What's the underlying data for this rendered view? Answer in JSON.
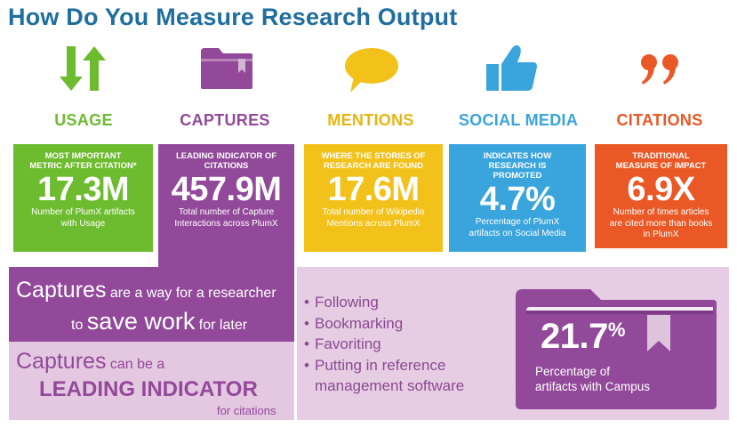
{
  "title": "How Do You Measure Research Output",
  "colors": {
    "usage": "#6dbb2f",
    "captures": "#92499a",
    "mentions": "#f2c11a",
    "social": "#3aa4dd",
    "citations": "#ea5825",
    "title": "#1f6e9f"
  },
  "categories": [
    {
      "key": "usage",
      "label": "USAGE",
      "icon": "up-down-arrows-icon",
      "subtitle": "MOST IMPORTANT METRIC AFTER CITATION*",
      "value": "17.3M",
      "description": "Number of PlumX artifacts with Usage"
    },
    {
      "key": "captures",
      "label": "CAPTURES",
      "icon": "folder-icon",
      "subtitle": "LEADING INDICATOR OF CITATIONS",
      "value": "457.9M",
      "description": "Total number of Capture Interactions across PlumX"
    },
    {
      "key": "mentions",
      "label": "MENTIONS",
      "icon": "speech-bubble-icon",
      "subtitle": "WHERE THE STORIES OF RESEARCH ARE FOUND",
      "value": "17.6M",
      "description": "Total number of Wikipedia Mentions across PlumX"
    },
    {
      "key": "social",
      "label": "SOCIAL MEDIA",
      "icon": "thumbs-up-icon",
      "subtitle": "INDICATES HOW RESEARCH IS PROMOTED",
      "value": "4.7%",
      "description": "Percentage of PlumX artifacts on Social Media"
    },
    {
      "key": "citations",
      "label": "CITATIONS",
      "icon": "quote-marks-icon",
      "subtitle": "TRADITIONAL MEASURE OF IMPACT",
      "value": "6.9X",
      "description": "Number of times articles are cited more than books in PlumX"
    }
  ],
  "captures_panel": {
    "line1_bold": "Captures",
    "line1_rest": "are a way for a researcher",
    "line2_pre": "to",
    "line2_bold": "save work",
    "line2_post": "for later",
    "line3_bold": "Captures",
    "line3_rest": "can be a",
    "line4_bold": "LEADING INDICATOR",
    "line5": "for citations"
  },
  "capture_types": {
    "bullet": "•",
    "items": [
      "Following",
      "Bookmarking",
      "Favoriting",
      "Putting in reference"
    ],
    "continuation": "management software"
  },
  "campus_stat": {
    "value": "21.7",
    "unit": "%",
    "line1": "Percentage of",
    "line2": "artifacts with Campus"
  }
}
